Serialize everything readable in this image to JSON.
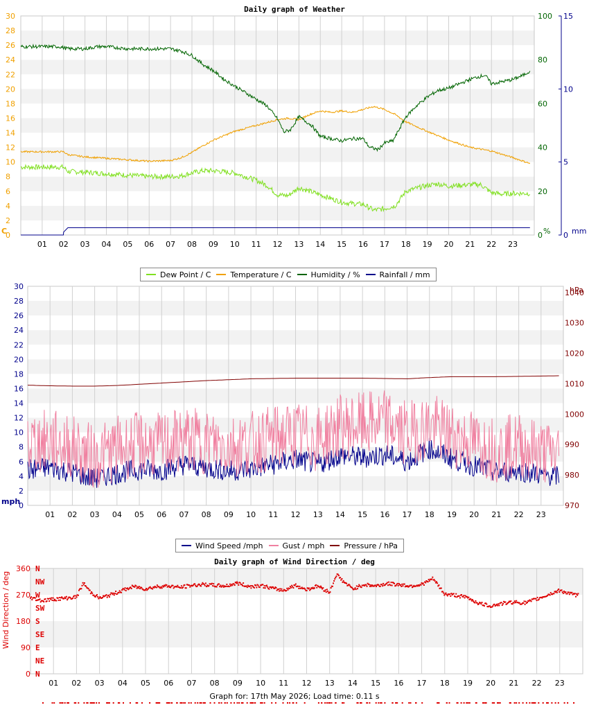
{
  "footer": "Graph for: 17th May 2026; Load time: 0.11 s",
  "chart_data": [
    {
      "type": "line",
      "title": "Daily graph of Weather",
      "x_ticks": [
        "01",
        "02",
        "03",
        "04",
        "05",
        "06",
        "07",
        "08",
        "09",
        "10",
        "11",
        "12",
        "13",
        "14",
        "15",
        "16",
        "17",
        "18",
        "19",
        "20",
        "21",
        "22",
        "23"
      ],
      "xlim": [
        0,
        24
      ],
      "y_left": {
        "unit": "C",
        "ticks": [
          "0",
          "2",
          "4",
          "6",
          "8",
          "10",
          "12",
          "14",
          "16",
          "18",
          "20",
          "22",
          "24",
          "26",
          "28",
          "30"
        ],
        "lim": [
          0,
          30
        ],
        "color": "#f0a000"
      },
      "y_right1": {
        "unit": "%",
        "ticks": [
          "0",
          "20",
          "40",
          "60",
          "80",
          "100"
        ],
        "lim": [
          0,
          100
        ],
        "color": "#006400"
      },
      "y_right2": {
        "unit": "mm",
        "ticks": [
          "0",
          "5",
          "10",
          "15"
        ],
        "lim": [
          0,
          15
        ],
        "color": "#00008b"
      },
      "legend": [
        "Dew Point / C",
        "Temperature / C",
        "Humidity / %",
        "Rainfall / mm"
      ],
      "series": [
        {
          "name": "Dew Point / C",
          "color": "#80e020",
          "axis": "left",
          "x": [
            0,
            1,
            2,
            2.2,
            3,
            4,
            5,
            6,
            7,
            7.5,
            8,
            8.5,
            9,
            10,
            10.5,
            11,
            11.5,
            12,
            12.5,
            13,
            13.5,
            14,
            14.5,
            15,
            15.5,
            16,
            16.5,
            17,
            17.5,
            18,
            18.5,
            19,
            19.5,
            20,
            20.5,
            21,
            21.5,
            22,
            22.5,
            23,
            23.8
          ],
          "y": [
            9.3,
            9.3,
            9.3,
            8.7,
            8.6,
            8.4,
            8.2,
            8.0,
            8.0,
            8.1,
            8.5,
            8.8,
            8.8,
            8.5,
            8.0,
            7.5,
            6.8,
            5.5,
            5.4,
            6.5,
            6.0,
            5.5,
            5.0,
            4.5,
            4.3,
            4.2,
            3.4,
            3.6,
            4.0,
            6.0,
            6.4,
            6.8,
            7.0,
            6.7,
            6.8,
            6.9,
            6.9,
            5.8,
            5.6,
            5.7,
            5.7
          ]
        },
        {
          "name": "Temperature / C",
          "color": "#f0a000",
          "axis": "left",
          "x": [
            0,
            1,
            2,
            2.2,
            3,
            4,
            5,
            6,
            7,
            7.5,
            8,
            8.5,
            9,
            10,
            11,
            12,
            12.5,
            13,
            13.5,
            14,
            14.5,
            15,
            15.5,
            16,
            16.5,
            17,
            17.5,
            18,
            19,
            20,
            21,
            22,
            23,
            23.8
          ],
          "y": [
            11.4,
            11.4,
            11.4,
            11.0,
            10.7,
            10.5,
            10.3,
            10.1,
            10.2,
            10.6,
            11.3,
            12.2,
            13.0,
            14.2,
            15.0,
            15.8,
            16.0,
            15.8,
            16.5,
            17.0,
            16.8,
            17.0,
            16.8,
            17.2,
            17.6,
            17.2,
            16.5,
            15.5,
            14.2,
            13.0,
            12.0,
            11.5,
            10.6,
            9.8
          ]
        },
        {
          "name": "Humidity / %",
          "color": "#006400",
          "axis": "right1",
          "x": [
            0,
            1,
            1.8,
            2.2,
            3,
            3.6,
            4,
            5,
            6,
            7,
            7.5,
            8,
            8.5,
            9,
            9.5,
            10,
            10.5,
            11,
            11.5,
            12,
            12.3,
            12.6,
            13,
            13.3,
            13.6,
            14,
            14.5,
            15,
            15.5,
            16,
            16.3,
            16.7,
            17,
            17.4,
            18,
            18.5,
            19,
            19.5,
            20,
            20.5,
            21,
            21.3,
            21.7,
            22,
            22.5,
            23,
            23.5,
            23.8
          ],
          "y": [
            86,
            86,
            86,
            85,
            85,
            86,
            86,
            85,
            85,
            85,
            84,
            82,
            78,
            75,
            71,
            68,
            65,
            62,
            59,
            53,
            47,
            48,
            54,
            52,
            50,
            45,
            44,
            43,
            44,
            44,
            40,
            39,
            42,
            43,
            54,
            59,
            63,
            66,
            67,
            69,
            71,
            72,
            73,
            69,
            70,
            71,
            73,
            75
          ]
        },
        {
          "name": "Rainfall / mm",
          "color": "#00008b",
          "axis": "right2",
          "x": [
            0,
            1.99,
            2.0,
            2.2,
            23.8
          ],
          "y": [
            0,
            0,
            0.2,
            0.5,
            0.5
          ]
        }
      ]
    },
    {
      "type": "line",
      "title": "",
      "x_ticks": [
        "01",
        "02",
        "03",
        "04",
        "05",
        "06",
        "07",
        "08",
        "09",
        "10",
        "11",
        "12",
        "13",
        "14",
        "15",
        "16",
        "17",
        "18",
        "19",
        "20",
        "21",
        "22",
        "23"
      ],
      "xlim": [
        0,
        24
      ],
      "y_left": {
        "unit": "mph",
        "ticks": [
          "0",
          "2",
          "4",
          "6",
          "8",
          "10",
          "12",
          "14",
          "16",
          "18",
          "20",
          "22",
          "24",
          "26",
          "28",
          "30"
        ],
        "lim": [
          0,
          30
        ],
        "color": "#00008b"
      },
      "y_right": {
        "unit": "hPa",
        "ticks": [
          "970",
          "980",
          "990",
          "1000",
          "1010",
          "1020",
          "1030",
          "1040"
        ],
        "lim": [
          970,
          1042
        ],
        "color": "#800000"
      },
      "legend": [
        "Wind Speed /mph",
        "Gust / mph",
        "Pressure / hPa"
      ],
      "series": [
        {
          "name": "Wind Speed /mph",
          "color": "#00008b",
          "axis": "left",
          "x": [
            0,
            1,
            2,
            3,
            4,
            5,
            6,
            7,
            8,
            9,
            10,
            11,
            12,
            13,
            14,
            15,
            16,
            17,
            18,
            19,
            20,
            21,
            22,
            23,
            23.8
          ],
          "y": [
            4.8,
            5.2,
            4.5,
            3.6,
            4.4,
            4.9,
            4.8,
            5.6,
            5.2,
            4.7,
            5.0,
            5.6,
            6.3,
            5.6,
            6.9,
            6.5,
            7.0,
            6.0,
            7.8,
            6.4,
            5.4,
            4.5,
            4.8,
            4.2,
            4.0
          ]
        },
        {
          "name": "Gust / mph",
          "color": "#f080a0",
          "axis": "left",
          "x": [
            0,
            1,
            2,
            3,
            4,
            5,
            6,
            7,
            8,
            9,
            10,
            11,
            12,
            13,
            14,
            15,
            16,
            17,
            18,
            19,
            20,
            21,
            22,
            23,
            23.8
          ],
          "y": [
            8.5,
            8.8,
            8.0,
            6.5,
            7.8,
            8.4,
            8.2,
            9.0,
            8.7,
            8.2,
            8.5,
            9.2,
            9.8,
            9.0,
            10.8,
            11.0,
            11.5,
            9.8,
            11.0,
            9.6,
            8.6,
            7.6,
            8.3,
            7.3,
            7.0
          ]
        },
        {
          "name": "Pressure / hPa",
          "color": "#800000",
          "axis": "right",
          "x": [
            0,
            1,
            2,
            3,
            4,
            5,
            6,
            7,
            8,
            9,
            10,
            11,
            12,
            13,
            14,
            15,
            16,
            17,
            18,
            19,
            20,
            21,
            22,
            23,
            23.8
          ],
          "y": [
            1009.5,
            1009.3,
            1009.2,
            1009.2,
            1009.4,
            1009.8,
            1010.2,
            1010.6,
            1011.0,
            1011.3,
            1011.6,
            1011.7,
            1011.8,
            1011.8,
            1011.8,
            1011.8,
            1011.7,
            1011.6,
            1012.0,
            1012.3,
            1012.3,
            1012.3,
            1012.4,
            1012.5,
            1012.6
          ]
        }
      ]
    },
    {
      "type": "scatter",
      "title": "Daily graph of Wind Direction / deg",
      "x_ticks": [
        "01",
        "02",
        "03",
        "04",
        "05",
        "06",
        "07",
        "08",
        "09",
        "10",
        "11",
        "12",
        "13",
        "14",
        "15",
        "16",
        "17",
        "18",
        "19",
        "20",
        "21",
        "22",
        "23"
      ],
      "xlim": [
        0,
        24
      ],
      "ylabel": "Wind Direction / deg",
      "y_ticks": [
        "0",
        "90",
        "180",
        "270",
        "360"
      ],
      "ylim": [
        0,
        360
      ],
      "compass_labels": [
        "N",
        "NW",
        "W",
        "SW",
        "S",
        "SE",
        "E",
        "NE",
        "N"
      ],
      "color": "#dd0000",
      "series": [
        {
          "name": "",
          "x": [
            0,
            0.5,
            1,
            1.5,
            2,
            2.3,
            2.6,
            3,
            3.5,
            4,
            4.5,
            5,
            5.5,
            6,
            6.5,
            7,
            7.5,
            8,
            8.5,
            9,
            9.5,
            10,
            10.5,
            11,
            11.5,
            12,
            12.5,
            13,
            13.3,
            13.6,
            14,
            14.5,
            15,
            15.5,
            16,
            16.5,
            17,
            17.5,
            18,
            18.5,
            19,
            19.5,
            20,
            20.5,
            21,
            21.5,
            22,
            22.5,
            23,
            23.5,
            23.8
          ],
          "y": [
            260,
            250,
            255,
            258,
            262,
            310,
            280,
            258,
            270,
            285,
            298,
            290,
            298,
            300,
            295,
            302,
            305,
            302,
            300,
            310,
            298,
            302,
            292,
            285,
            302,
            288,
            300,
            278,
            340,
            315,
            290,
            305,
            300,
            308,
            305,
            300,
            305,
            325,
            272,
            268,
            260,
            240,
            232,
            240,
            245,
            242,
            255,
            270,
            285,
            272,
            268
          ]
        }
      ]
    }
  ]
}
